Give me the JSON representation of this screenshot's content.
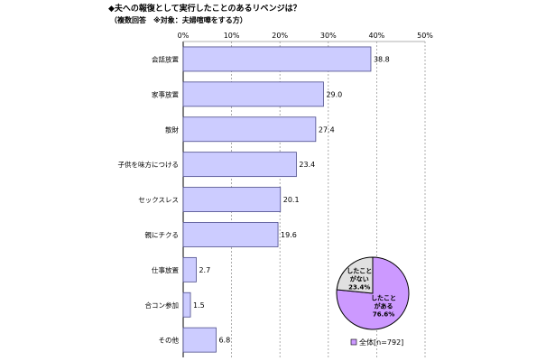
{
  "chart_data": {
    "type": "bar",
    "orientation": "horizontal",
    "title": "◆夫への報復として実行したことのあるリベンジは？",
    "subtitle": "（複数回答　※対象：夫婦喧嘩をする方）",
    "categories": [
      "会話放置",
      "家事放置",
      "散財",
      "子供を味方につける",
      "セックスレス",
      "親にチクる",
      "仕事放置",
      "合コン参加",
      "その他"
    ],
    "values": [
      38.8,
      29.0,
      27.4,
      23.4,
      20.1,
      19.6,
      2.7,
      1.5,
      6.8
    ],
    "value_labels": [
      "38.8",
      "29.0",
      "27.4",
      "23.4",
      "20.1",
      "19.6",
      "2.7",
      "1.5",
      "6.8"
    ],
    "xlim": [
      0,
      50
    ],
    "xticks": [
      "0%",
      "10%",
      "20%",
      "30%",
      "40%",
      "50%"
    ],
    "grid": true,
    "bar_color": "#ccccff",
    "bar_edge": "#4b4b8a",
    "legend": {
      "label": "全体[n=792]",
      "placement": "bottom-right"
    },
    "pie": {
      "type": "pie",
      "slices": [
        {
          "label_lines": [
            "したこと",
            "がある",
            "76.6%"
          ],
          "value": 76.6,
          "color": "#cc99ff"
        },
        {
          "label_lines": [
            "したこと",
            "がない",
            "23.4%"
          ],
          "value": 23.4,
          "color": "#e0e0e0"
        }
      ]
    }
  }
}
